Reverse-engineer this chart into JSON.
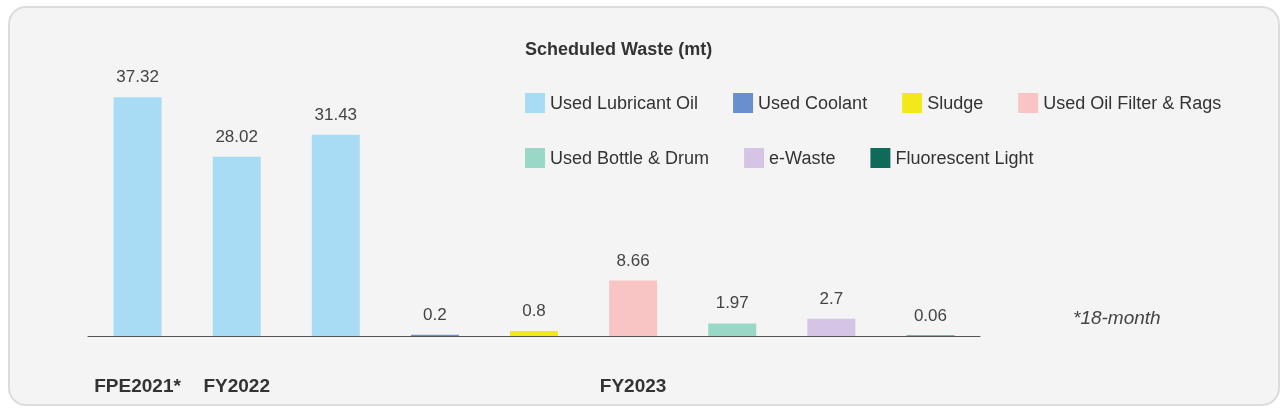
{
  "chart_data": {
    "type": "bar",
    "legend_title": "Scheduled Waste (mt)",
    "categories": [
      "FPE2021*",
      "FY2022",
      null,
      null,
      null,
      "FY2023",
      null,
      null,
      null
    ],
    "series": [
      {
        "name": "Used Lubricant Oil",
        "color": "#a8dcf5",
        "values": [
          37.32,
          28.02,
          31.43,
          null,
          null,
          null,
          null,
          null,
          null
        ]
      },
      {
        "name": "Used Coolant",
        "color": "#6a8fcf",
        "values": [
          null,
          null,
          null,
          0.2,
          null,
          null,
          null,
          null,
          null
        ]
      },
      {
        "name": "Sludge",
        "color": "#f2e81a",
        "values": [
          null,
          null,
          null,
          null,
          0.8,
          null,
          null,
          null,
          null
        ]
      },
      {
        "name": "Used Oil Filter & Rags",
        "color": "#f9c4c4",
        "values": [
          null,
          null,
          null,
          null,
          null,
          8.66,
          null,
          null,
          null
        ]
      },
      {
        "name": "Used Bottle & Drum",
        "color": "#99d8c6",
        "values": [
          null,
          null,
          null,
          null,
          null,
          null,
          1.97,
          null,
          null
        ]
      },
      {
        "name": "e-Waste",
        "color": "#d6c4e4",
        "values": [
          null,
          null,
          null,
          null,
          null,
          null,
          null,
          2.7,
          null
        ]
      },
      {
        "name": "Fluorescent Light",
        "color": "#0f6a5a",
        "values": [
          null,
          null,
          null,
          null,
          null,
          null,
          null,
          null,
          0.06
        ]
      }
    ],
    "data_labels": true,
    "legend": "top right",
    "grid": false,
    "annotations": [
      "*18-month"
    ]
  }
}
